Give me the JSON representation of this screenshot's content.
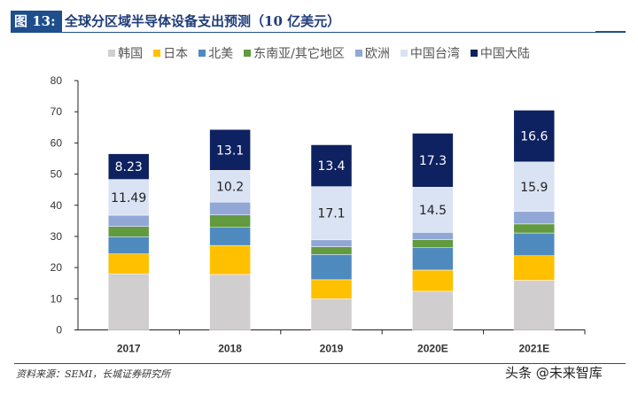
{
  "header": {
    "figure_label": "图 13:",
    "title": "全球分区域半导体设备支出预测（10 亿美元）"
  },
  "source": "资料来源：SEMI，长城证券研究所",
  "watermark": "头条 @未来智库",
  "chart_data": {
    "type": "stacked-bar",
    "title": "全球分区域半导体设备支出预测（10 亿美元）",
    "categories": [
      "2017",
      "2018",
      "2019",
      "2020E",
      "2021E"
    ],
    "ylim": [
      0,
      80
    ],
    "yticks": [
      0,
      10,
      20,
      30,
      40,
      50,
      60,
      70,
      80
    ],
    "grid": false,
    "legend_position": "top",
    "series": [
      {
        "name": "韩国",
        "color": "#d0cece",
        "values": [
          18.0,
          17.8,
          10.0,
          12.4,
          15.9
        ]
      },
      {
        "name": "日本",
        "color": "#ffc000",
        "values": [
          6.4,
          9.3,
          6.1,
          6.8,
          7.9
        ]
      },
      {
        "name": "北美",
        "color": "#4f8abf",
        "values": [
          5.5,
          5.8,
          8.1,
          7.3,
          7.3
        ]
      },
      {
        "name": "东南亚/其它地区",
        "color": "#629a3f",
        "values": [
          3.3,
          4.0,
          2.5,
          2.5,
          2.9
        ]
      },
      {
        "name": "欧洲",
        "color": "#91a7d6",
        "values": [
          3.6,
          4.1,
          2.2,
          2.3,
          4.0
        ]
      },
      {
        "name": "中国台湾",
        "color": "#dae3f3",
        "values": [
          11.49,
          10.2,
          17.1,
          14.5,
          15.9
        ],
        "labels": [
          "11.49",
          "10.2",
          "17.1",
          "14.5",
          "15.9"
        ],
        "label_color": "#222222"
      },
      {
        "name": "中国大陆",
        "color": "#0e2160",
        "values": [
          8.23,
          13.1,
          13.4,
          17.3,
          16.6
        ],
        "labels": [
          "8.23",
          "13.1",
          "13.4",
          "17.3",
          "16.6"
        ],
        "label_color": "#ffffff"
      }
    ]
  }
}
